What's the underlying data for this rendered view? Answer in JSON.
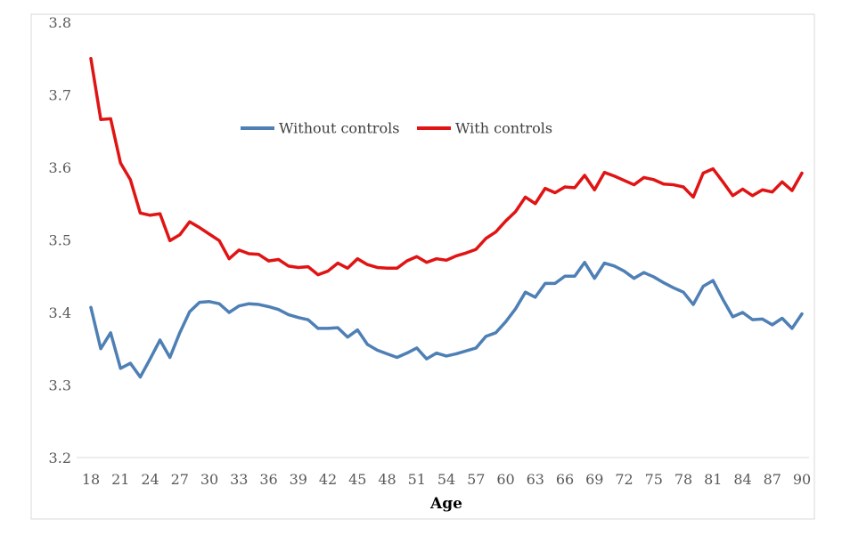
{
  "chart_data": {
    "type": "line",
    "title": "",
    "xlabel": "Age",
    "ylabel": "",
    "xlim": [
      18,
      90
    ],
    "ylim": [
      3.2,
      3.8
    ],
    "grid": false,
    "legend_position": "top-center",
    "x_ticks": [
      "18",
      "21",
      "24",
      "27",
      "30",
      "33",
      "36",
      "39",
      "42",
      "45",
      "48",
      "51",
      "54",
      "57",
      "60",
      "63",
      "66",
      "69",
      "72",
      "75",
      "78",
      "81",
      "84",
      "87",
      "90"
    ],
    "y_ticks": [
      "3.2",
      "3.3",
      "3.4",
      "3.5",
      "3.6",
      "3.7",
      "3.8"
    ],
    "x": [
      18,
      19,
      20,
      21,
      22,
      23,
      24,
      25,
      26,
      27,
      28,
      29,
      30,
      31,
      32,
      33,
      34,
      35,
      36,
      37,
      38,
      39,
      40,
      41,
      42,
      43,
      44,
      45,
      46,
      47,
      48,
      49,
      50,
      51,
      52,
      53,
      54,
      55,
      56,
      57,
      58,
      59,
      60,
      61,
      62,
      63,
      64,
      65,
      66,
      67,
      68,
      69,
      70,
      71,
      72,
      73,
      74,
      75,
      76,
      77,
      78,
      79,
      80,
      81,
      82,
      83,
      84,
      85,
      86,
      87,
      88,
      89,
      90
    ],
    "series": [
      {
        "name": "Without controls",
        "color": "#4e7fb5",
        "values": [
          3.407,
          3.35,
          3.372,
          3.323,
          3.33,
          3.311,
          3.336,
          3.362,
          3.338,
          3.372,
          3.401,
          3.414,
          3.415,
          3.412,
          3.4,
          3.409,
          3.412,
          3.411,
          3.408,
          3.404,
          3.397,
          3.393,
          3.39,
          3.378,
          3.378,
          3.379,
          3.366,
          3.376,
          3.356,
          3.348,
          3.343,
          3.338,
          3.344,
          3.351,
          3.336,
          3.344,
          3.34,
          3.343,
          3.347,
          3.351,
          3.367,
          3.372,
          3.387,
          3.405,
          3.428,
          3.421,
          3.44,
          3.44,
          3.45,
          3.45,
          3.469,
          3.447,
          3.468,
          3.464,
          3.457,
          3.447,
          3.455,
          3.449,
          3.441,
          3.434,
          3.428,
          3.411,
          3.436,
          3.444,
          3.418,
          3.394,
          3.4,
          3.39,
          3.391,
          3.383,
          3.392,
          3.378,
          3.398
        ]
      },
      {
        "name": "With controls",
        "color": "#e01414",
        "values": [
          3.75,
          3.666,
          3.667,
          3.606,
          3.583,
          3.537,
          3.534,
          3.536,
          3.499,
          3.507,
          3.525,
          3.517,
          3.508,
          3.499,
          3.474,
          3.486,
          3.481,
          3.48,
          3.471,
          3.473,
          3.464,
          3.462,
          3.463,
          3.452,
          3.457,
          3.468,
          3.461,
          3.474,
          3.466,
          3.462,
          3.461,
          3.461,
          3.471,
          3.477,
          3.469,
          3.474,
          3.472,
          3.478,
          3.482,
          3.487,
          3.502,
          3.511,
          3.526,
          3.539,
          3.559,
          3.55,
          3.571,
          3.565,
          3.573,
          3.572,
          3.589,
          3.569,
          3.593,
          3.588,
          3.582,
          3.576,
          3.586,
          3.583,
          3.577,
          3.576,
          3.573,
          3.559,
          3.592,
          3.598,
          3.58,
          3.561,
          3.57,
          3.561,
          3.569,
          3.566,
          3.58,
          3.568,
          3.592
        ]
      }
    ]
  }
}
